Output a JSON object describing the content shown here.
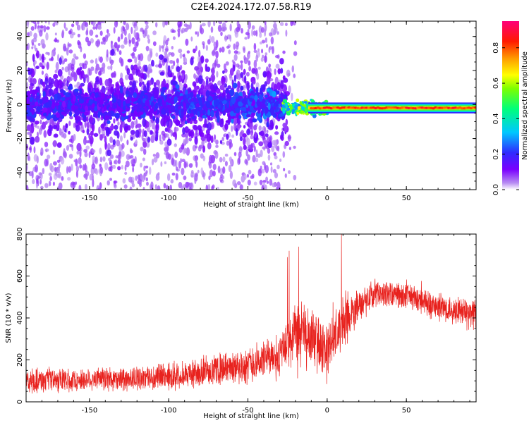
{
  "title": "C2E4.2024.172.07.58.R19",
  "colors": {
    "snr_line": "#e8221e",
    "axis": "#000000",
    "background": "#ffffff"
  },
  "chart_data": [
    {
      "type": "heatmap",
      "title": "C2E4.2024.172.07.58.R19",
      "xlabel": "Height of straight line (km)",
      "ylabel": "Frequency (Hz)",
      "xlim": [
        -190,
        94
      ],
      "ylim": [
        -50,
        49
      ],
      "x_ticks": [
        -150,
        -100,
        -50,
        0,
        50
      ],
      "y_ticks": [
        -40,
        -20,
        0,
        20,
        40
      ],
      "colorbar": {
        "label": "Normalized spectral amplitude",
        "range": [
          0.0,
          0.95
        ],
        "ticks": [
          0.0,
          0.2,
          0.4,
          0.6,
          0.8
        ],
        "colormap": "rainbow (white-violet-blue-cyan-green-yellow-red-magenta)"
      },
      "description_points": [
        {
          "x_range": [
            -190,
            -28
          ],
          "freq_center": 0,
          "freq_halfwidth": 8,
          "amplitude": 0.1,
          "scatter_spread_hz": 50
        },
        {
          "x_range": [
            -28,
            0
          ],
          "freq_center": -2,
          "freq_halfwidth": 3,
          "amplitude": 0.5
        },
        {
          "x_range": [
            0,
            94
          ],
          "freq_center": -2,
          "freq_halfwidth": 2,
          "amplitude": 0.85
        }
      ],
      "grid": false
    },
    {
      "type": "line",
      "xlabel": "Height of straight line (km)",
      "ylabel": "SNR (10 * v/v)",
      "xlim": [
        -190,
        94
      ],
      "ylim": [
        0,
        800
      ],
      "x_ticks": [
        -150,
        -100,
        -50,
        0,
        50
      ],
      "y_ticks": [
        0,
        200,
        400,
        600,
        800
      ],
      "envelope": {
        "x": [
          -190,
          -150,
          -100,
          -75,
          -50,
          -30,
          -20,
          -10,
          0,
          10,
          20,
          30,
          50,
          70,
          94
        ],
        "mean": [
          100,
          105,
          120,
          145,
          175,
          225,
          320,
          300,
          250,
          370,
          470,
          510,
          510,
          450,
          420
        ],
        "spread": [
          60,
          60,
          65,
          75,
          90,
          110,
          180,
          150,
          150,
          130,
          80,
          70,
          70,
          70,
          70
        ]
      },
      "peaks": [
        {
          "x": -25,
          "y": 690
        },
        {
          "x": -24,
          "y": 720
        },
        {
          "x": -18,
          "y": 740
        },
        {
          "x": 9,
          "y": 800
        }
      ],
      "grid": false
    }
  ]
}
